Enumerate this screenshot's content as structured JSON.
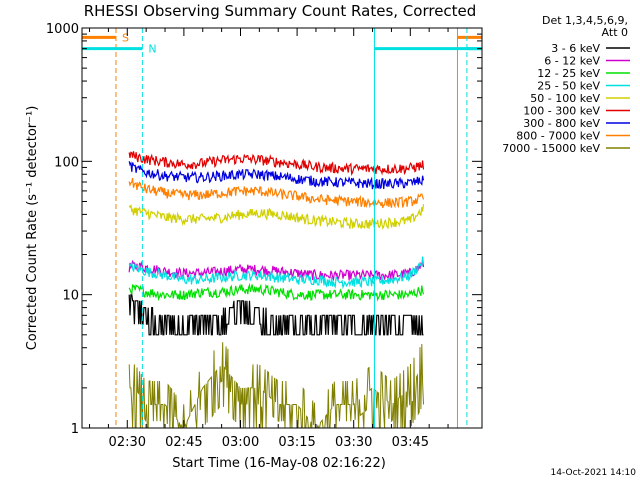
{
  "chart_data": {
    "type": "line",
    "title": "RHESSI Observing Summary Count Rates, Corrected",
    "xlabel": "Start Time (16-May-08 02:16:22)",
    "ylabel": "Corrected Count Rate (s⁻¹ detector⁻¹)",
    "y_scale": "log",
    "ylim": [
      1,
      1000
    ],
    "xlim_minutes": [
      -12,
      94
    ],
    "x_ticks": [
      {
        "label": "02:30",
        "value": 0
      },
      {
        "label": "02:45",
        "value": 15
      },
      {
        "label": "03:00",
        "value": 30
      },
      {
        "label": "03:15",
        "value": 45
      },
      {
        "label": "03:30",
        "value": 60
      },
      {
        "label": "03:45",
        "value": 75
      }
    ],
    "y_ticks": [
      {
        "label": "1",
        "value": 1
      },
      {
        "label": "10",
        "value": 10
      },
      {
        "label": "100",
        "value": 100
      },
      {
        "label": "1000",
        "value": 1000
      }
    ],
    "legend": {
      "placement": "right",
      "header_lines": [
        "Det 1,3,4,5,6,9,",
        "Att 0"
      ]
    },
    "data_start_minute": 0.5,
    "data_end_minute": 78.5,
    "series": [
      {
        "name": "3 - 6 keV",
        "color": "#000000",
        "x": [
          0.5,
          2,
          5,
          10,
          15,
          20,
          25,
          30,
          35,
          40,
          45,
          50,
          55,
          60,
          65,
          70,
          75,
          78.5
        ],
        "y": [
          8.5,
          8,
          7,
          6,
          6,
          6.2,
          6.5,
          8,
          7,
          6,
          6,
          6,
          6,
          6,
          6,
          6,
          6,
          6
        ]
      },
      {
        "name": "6 - 12 keV",
        "color": "#d000d0",
        "x": [
          0.5,
          2,
          5,
          10,
          15,
          20,
          25,
          30,
          35,
          40,
          45,
          50,
          55,
          60,
          65,
          70,
          75,
          78.5
        ],
        "y": [
          16,
          16.5,
          16,
          15,
          14.5,
          14.5,
          15,
          15.5,
          15.5,
          15,
          14.5,
          14,
          14,
          14,
          14,
          14,
          14.5,
          17
        ]
      },
      {
        "name": "12 - 25 keV",
        "color": "#00e000",
        "x": [
          0.5,
          2,
          5,
          10,
          15,
          20,
          25,
          30,
          35,
          40,
          45,
          50,
          55,
          60,
          65,
          70,
          75,
          78.5
        ],
        "y": [
          11,
          11,
          10.5,
          10,
          10,
          10.5,
          10.5,
          11,
          11,
          10.5,
          10,
          10,
          10,
          10,
          10,
          10,
          10,
          11
        ]
      },
      {
        "name": "25 - 50 keV",
        "color": "#00e0e0",
        "x": [
          0.5,
          2,
          5,
          10,
          15,
          20,
          25,
          30,
          35,
          40,
          45,
          50,
          55,
          60,
          65,
          70,
          75,
          78.5
        ],
        "y": [
          16,
          16,
          15,
          14,
          13,
          13,
          13.5,
          14,
          14,
          13.5,
          13,
          13,
          12.5,
          12.5,
          12.5,
          13,
          14,
          18
        ]
      },
      {
        "name": "50 - 100 keV",
        "color": "#d0d000",
        "x": [
          0.5,
          2,
          5,
          10,
          15,
          20,
          25,
          30,
          35,
          40,
          45,
          50,
          55,
          60,
          65,
          70,
          75,
          78.5
        ],
        "y": [
          44,
          43,
          41,
          38,
          37,
          37,
          38,
          40,
          41,
          40,
          38,
          36,
          35,
          34,
          34,
          35,
          36,
          44
        ]
      },
      {
        "name": "100 - 300 keV",
        "color": "#e00000",
        "x": [
          0.5,
          2,
          5,
          10,
          15,
          20,
          25,
          30,
          35,
          40,
          45,
          50,
          55,
          60,
          65,
          70,
          75,
          78.5
        ],
        "y": [
          114,
          109,
          104,
          99,
          95,
          97,
          102,
          105,
          103,
          99,
          95,
          91,
          89,
          88,
          88,
          88,
          89,
          94
        ]
      },
      {
        "name": "300 - 800 keV",
        "color": "#0000e0",
        "x": [
          0.5,
          2,
          5,
          10,
          15,
          20,
          25,
          30,
          35,
          40,
          45,
          50,
          55,
          60,
          65,
          70,
          75,
          78.5
        ],
        "y": [
          94,
          88,
          83,
          78,
          76,
          76,
          78,
          80,
          80,
          77,
          74,
          71,
          70,
          69,
          68,
          68,
          69,
          72
        ]
      },
      {
        "name": "800 - 7000 keV",
        "color": "#ff8000",
        "x": [
          0.5,
          2,
          5,
          10,
          15,
          20,
          25,
          30,
          35,
          40,
          45,
          50,
          55,
          60,
          65,
          70,
          75,
          78.5
        ],
        "y": [
          72,
          67,
          62,
          58,
          56,
          56,
          58,
          60,
          60,
          57,
          55,
          52,
          51,
          50,
          49,
          49,
          50,
          53
        ]
      },
      {
        "name": "7000 - 15000 keV",
        "color": "#808000",
        "x": [
          0.5,
          2,
          5,
          10,
          15,
          20,
          25,
          30,
          35,
          40,
          45,
          50,
          55,
          60,
          65,
          70,
          75,
          78.5
        ],
        "y": [
          2,
          2,
          1.5,
          1.5,
          1,
          2,
          3,
          2,
          2,
          1.5,
          1.5,
          1,
          1.5,
          1.5,
          2,
          1.5,
          2,
          3
        ]
      }
    ],
    "annotations": [
      {
        "label": "S",
        "color": "#ff8000",
        "bar_start_minute": -12,
        "bar_end_minute": -3,
        "line_minute": -3,
        "level": 850
      },
      {
        "label": "N",
        "color": "#00e0e0",
        "bar_start_minute": -12,
        "bar_end_minute": 4,
        "line_minute": 4,
        "level": 700
      },
      {
        "label": "",
        "color": "#00e0e0",
        "bar_start_minute": 65.5,
        "bar_end_minute": 94,
        "line_minute": 65.5,
        "level": 700
      },
      {
        "label": "",
        "color": "#ff8000",
        "bar_start_minute": 87.5,
        "bar_end_minute": 94,
        "line_minute": 87.5,
        "level": 850
      },
      {
        "label": "",
        "color": "#00e0e0",
        "bar_start_minute": 90,
        "bar_end_minute": 94,
        "line_minute": 90,
        "level": 700
      }
    ],
    "grid": false
  },
  "timestamp": "14-Oct-2021 14:10"
}
